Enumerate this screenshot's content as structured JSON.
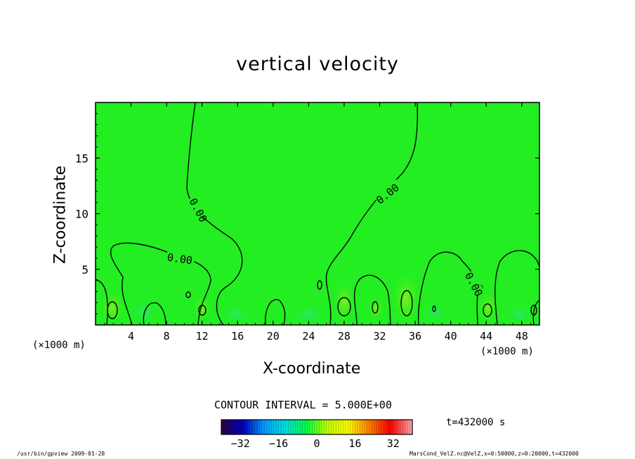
{
  "chart_data": {
    "type": "heatmap",
    "title": "vertical velocity",
    "xlabel": "X-coordinate",
    "ylabel": "Z-coordinate",
    "x_unit_left": "(×1000 m)",
    "x_unit_right": "(×1000 m)",
    "xlim": [
      0,
      50
    ],
    "ylim": [
      0,
      20
    ],
    "xticks": [
      "4",
      "8",
      "12",
      "16",
      "20",
      "24",
      "28",
      "32",
      "36",
      "40",
      "44",
      "48"
    ],
    "yticks": [
      "5",
      "10",
      "15"
    ],
    "contour_labels": [
      "0.00",
      "0.00",
      "0.00",
      "0.00"
    ],
    "contour_interval_text": "CONTOUR INTERVAL = 5.000E+00",
    "colorbar": {
      "range": [
        -40,
        40
      ],
      "ticks": [
        "−32",
        "−16",
        "0",
        "16",
        "32"
      ],
      "colors": [
        "#2a004a",
        "#0000c0",
        "#00a0ff",
        "#00e0e0",
        "#00ff40",
        "#c0ff00",
        "#ffff00",
        "#ff8000",
        "#ff0000",
        "#ffa0a0"
      ]
    },
    "background_color": "#22ee22",
    "time_text": "t=432000 s"
  },
  "footer": {
    "left": "/usr/bin/gpview   2009-01-28",
    "right": "MarsCond_VelZ.nc@VelZ,x=0:50000,z=0:20000,t=432000"
  }
}
